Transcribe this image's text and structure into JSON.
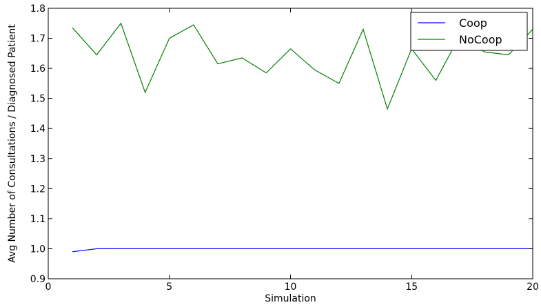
{
  "chart_data": {
    "type": "line",
    "xlabel": "Simulation",
    "ylabel": "Avg Number of Consultations / Diagnosed Patient",
    "xlim": [
      0,
      20
    ],
    "ylim": [
      0.9,
      1.8
    ],
    "xticks": [
      0,
      5,
      10,
      15,
      20
    ],
    "yticks": [
      0.9,
      1.0,
      1.1,
      1.2,
      1.3,
      1.4,
      1.5,
      1.6,
      1.7,
      1.8
    ],
    "grid": false,
    "legend_position": "top-right",
    "x": [
      1,
      2,
      3,
      4,
      5,
      6,
      7,
      8,
      9,
      10,
      11,
      12,
      13,
      14,
      15,
      16,
      17,
      18,
      19,
      20
    ],
    "series": [
      {
        "name": "Coop",
        "color": "#0000ff",
        "values": [
          0.99,
          1.0,
          1.0,
          1.0,
          1.0,
          1.0,
          1.0,
          1.0,
          1.0,
          1.0,
          1.0,
          1.0,
          1.0,
          1.0,
          1.0,
          1.0,
          1.0,
          1.0,
          1.0,
          1.0
        ]
      },
      {
        "name": "NoCoop",
        "color": "#008000",
        "values": [
          1.735,
          1.645,
          1.75,
          1.52,
          1.7,
          1.745,
          1.615,
          1.635,
          1.585,
          1.665,
          1.595,
          1.55,
          1.73,
          1.465,
          1.665,
          1.56,
          1.71,
          1.655,
          1.645,
          1.73
        ]
      }
    ]
  }
}
